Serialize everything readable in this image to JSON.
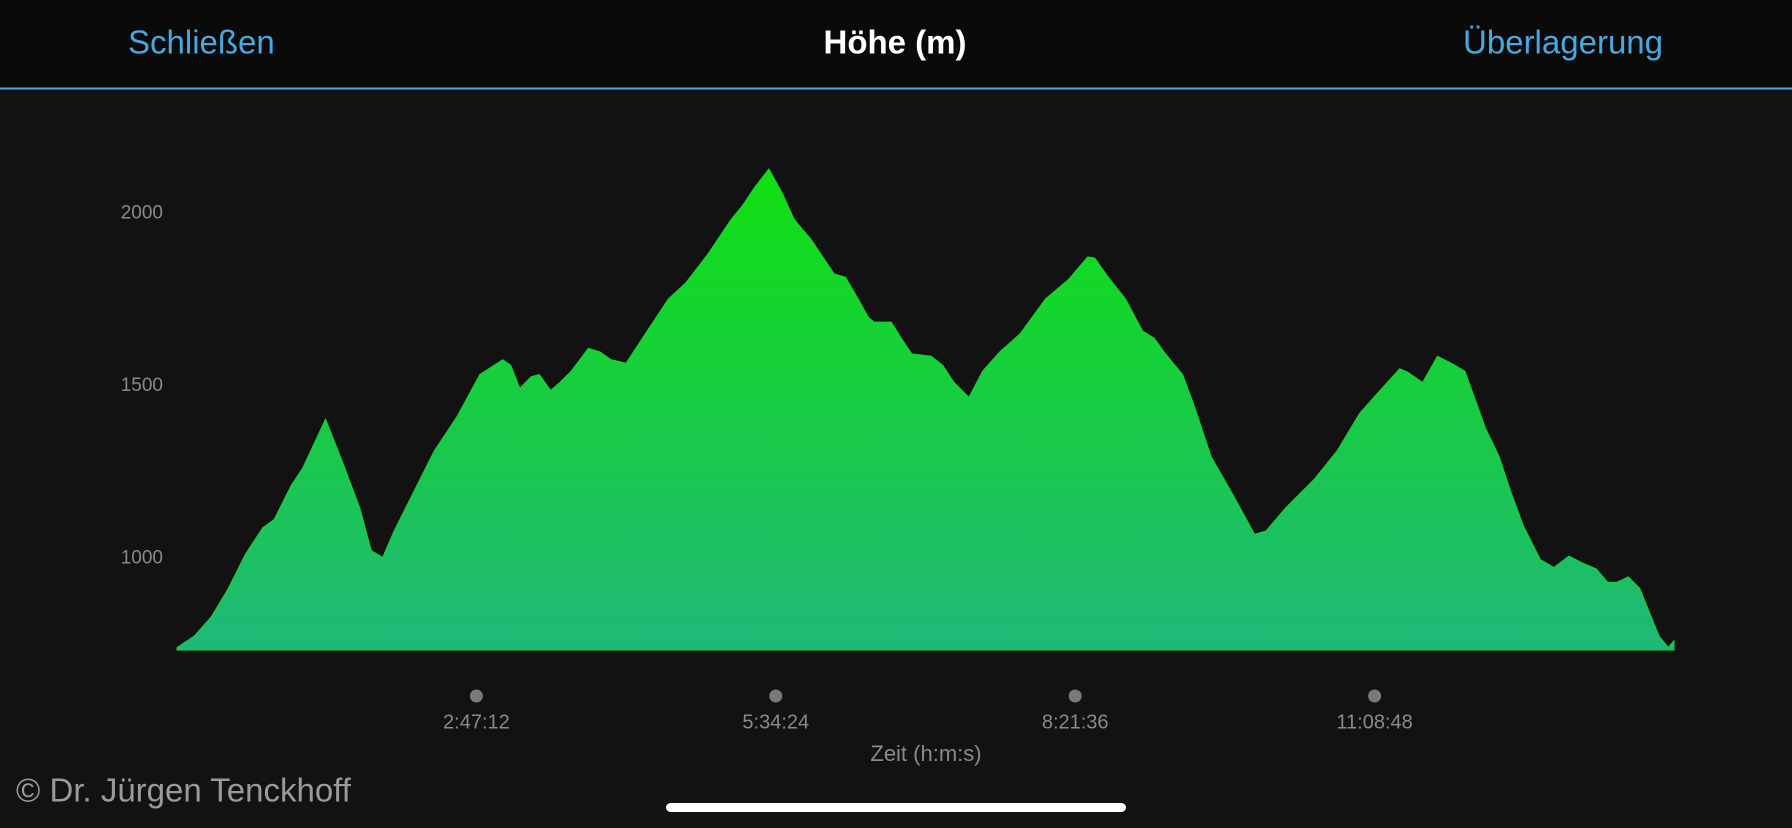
{
  "header": {
    "close": "Schließen",
    "overlay": "Überlagerung"
  },
  "chart_data": {
    "type": "area",
    "title": "Höhe (m)",
    "x_label": "Zeit (h:m:s)",
    "x": [
      0,
      574,
      1149,
      1723,
      2297,
      2872,
      3255,
      3829,
      4212,
      4978,
      5552,
      6126,
      6510,
      6892,
      7275,
      7850,
      8615,
      9381,
      10147,
      10913,
      11181,
      11487,
      11870,
      12138,
      12521,
      12827,
      13210,
      13784,
      14167,
      14550,
      15048,
      15699,
      16465,
      17039,
      17805,
      18571,
      18954,
      19336,
      19834,
      20294,
      20677,
      21251,
      22017,
      22400,
      22783,
      23165,
      23357,
      23931,
      24314,
      24620,
      25271,
      25654,
      26037,
      26535,
      26994,
      27569,
      28258,
      29100,
      29866,
      30517,
      30747,
      31206,
      31781,
      32355,
      32738,
      33121,
      33695,
      34078,
      34652,
      35419,
      36107,
      36490,
      37141,
      38099,
      38864,
      39630,
      40205,
      40970,
      41238,
      41736,
      42234,
      42693,
      43153,
      43842,
      44302,
      44685,
      45106,
      45680,
      46140,
      46637,
      47097,
      47556,
      47939,
      48245,
      48628,
      49011,
      49318,
      49662,
      49968,
      50160
    ],
    "values": [
      742,
      775,
      831,
      914,
      1013,
      1089,
      1113,
      1212,
      1262,
      1404,
      1278,
      1146,
      1023,
      1003,
      1080,
      1179,
      1311,
      1411,
      1533,
      1576,
      1560,
      1493,
      1527,
      1533,
      1487,
      1510,
      1543,
      1609,
      1599,
      1576,
      1566,
      1652,
      1752,
      1798,
      1884,
      1983,
      2023,
      2073,
      2129,
      2056,
      1983,
      1924,
      1825,
      1815,
      1758,
      1699,
      1685,
      1685,
      1632,
      1593,
      1586,
      1560,
      1510,
      1467,
      1543,
      1599,
      1652,
      1752,
      1808,
      1874,
      1871,
      1815,
      1752,
      1659,
      1639,
      1593,
      1533,
      1444,
      1295,
      1179,
      1070,
      1080,
      1146,
      1229,
      1311,
      1421,
      1477,
      1550,
      1540,
      1510,
      1586,
      1566,
      1543,
      1378,
      1295,
      1195,
      1096,
      997,
      974,
      1007,
      987,
      970,
      931,
      931,
      947,
      914,
      848,
      775,
      742,
      762
    ],
    "color": "#12d62e",
    "xlim": [
      0,
      50160
    ],
    "ylim": [
      735,
      2288
    ],
    "xticks": [
      {
        "value": 10032,
        "label": "2:47:12"
      },
      {
        "value": 20064,
        "label": "5:34:24"
      },
      {
        "value": 30096,
        "label": "8:21:36"
      },
      {
        "value": 40128,
        "label": "11:08:48"
      }
    ],
    "yticks": [
      1000,
      1500,
      2000
    ],
    "grid": false
  },
  "watermark": "© Dr. Jürgen Tenckhoff"
}
